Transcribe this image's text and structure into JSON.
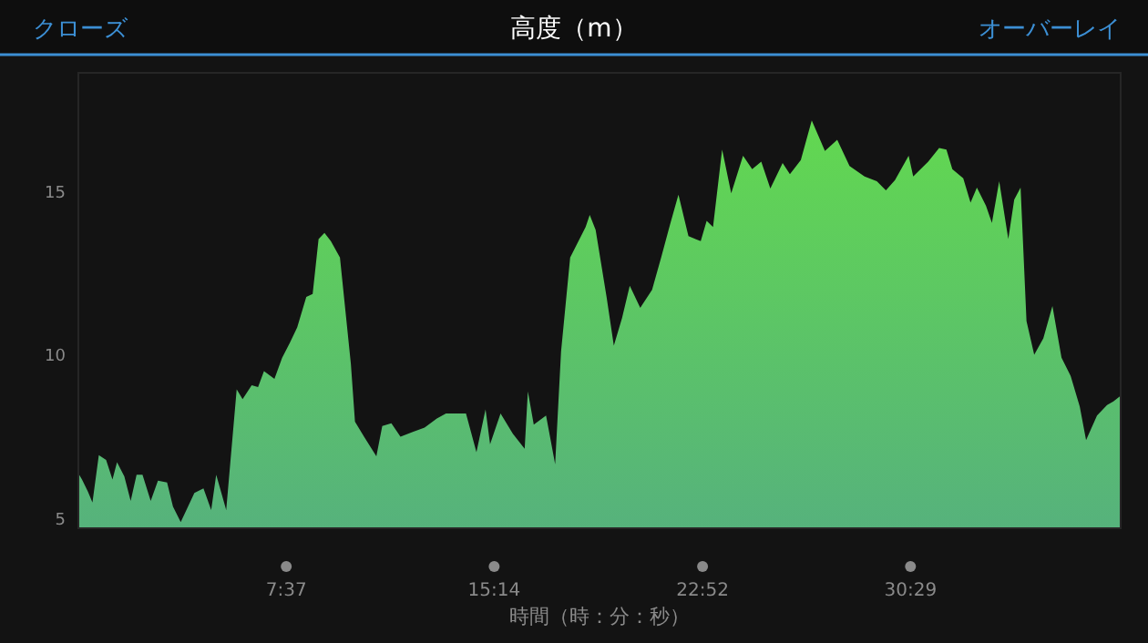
{
  "chart_data": {
    "type": "area",
    "title": "高度（m）",
    "xlabel": "時間（時：分：秒）",
    "annotations": [
      "クローズ",
      "オーバーレイ"
    ],
    "xlim": [
      0,
      2291
    ],
    "ylim": [
      4.66,
      18.6
    ],
    "xticks": [
      {
        "value": 457,
        "label": "7:37"
      },
      {
        "value": 914,
        "label": "15:14"
      },
      {
        "value": 1372,
        "label": "22:52"
      },
      {
        "value": 1829,
        "label": "30:29"
      }
    ],
    "yticks": [
      5,
      10,
      15
    ],
    "series": [
      {
        "color": "#62d850",
        "x": [
          0,
          8,
          21,
          31,
          45,
          61,
          75,
          85,
          101,
          115,
          128,
          141,
          159,
          175,
          195,
          208,
          225,
          241,
          255,
          275,
          292,
          303,
          325,
          348,
          361,
          381,
          395,
          408,
          431,
          448,
          465,
          481,
          501,
          515,
          528,
          541,
          555,
          575,
          599,
          608,
          628,
          655,
          668,
          688,
          708,
          735,
          761,
          788,
          808,
          852,
          875,
          895,
          905,
          928,
          955,
          981,
          988,
          1001,
          1028,
          1048,
          1061,
          1081,
          1115,
          1124,
          1137,
          1161,
          1177,
          1195,
          1212,
          1235,
          1261,
          1281,
          1301,
          1319,
          1341,
          1368,
          1381,
          1395,
          1415,
          1435,
          1461,
          1481,
          1501,
          1521,
          1548,
          1564,
          1588,
          1612,
          1641,
          1668,
          1695,
          1728,
          1755,
          1775,
          1795,
          1825,
          1835,
          1868,
          1892,
          1908,
          1921,
          1945,
          1961,
          1975,
          1995,
          2008,
          2024,
          2044,
          2057,
          2071,
          2084,
          2101,
          2121,
          2141,
          2161,
          2181,
          2201,
          2215,
          2239,
          2261,
          2275,
          2291
        ],
        "values": [
          6.34,
          6.15,
          5.78,
          5.45,
          6.9,
          6.75,
          6.15,
          6.68,
          6.25,
          5.5,
          6.3,
          6.3,
          5.5,
          6.12,
          6.06,
          5.32,
          4.85,
          5.32,
          5.74,
          5.88,
          5.22,
          6.3,
          5.22,
          8.91,
          8.61,
          9.04,
          8.98,
          9.47,
          9.23,
          9.88,
          10.34,
          10.81,
          11.74,
          11.83,
          13.51,
          13.7,
          13.45,
          12.95,
          9.69,
          7.92,
          7.46,
          6.86,
          7.79,
          7.87,
          7.46,
          7.61,
          7.74,
          8.02,
          8.17,
          8.17,
          6.99,
          8.3,
          7.23,
          8.17,
          7.55,
          7.09,
          8.85,
          7.83,
          8.11,
          6.62,
          10.07,
          12.95,
          13.88,
          14.25,
          13.79,
          11.74,
          10.25,
          11.09,
          12.08,
          11.41,
          11.96,
          12.95,
          13.98,
          14.87,
          13.6,
          13.45,
          14.07,
          13.88,
          16.25,
          14.91,
          16.06,
          15.65,
          15.88,
          15.06,
          15.84,
          15.5,
          15.93,
          17.14,
          16.21,
          16.55,
          15.75,
          15.43,
          15.28,
          15.0,
          15.32,
          16.06,
          15.43,
          15.88,
          16.3,
          16.25,
          15.65,
          15.37,
          14.63,
          15.09,
          14.53,
          14.01,
          15.28,
          13.51,
          14.72,
          15.09,
          11.0,
          9.97,
          10.47,
          11.46,
          9.88,
          9.32,
          8.39,
          7.36,
          8.11,
          8.43,
          8.54,
          8.72
        ]
      }
    ]
  }
}
